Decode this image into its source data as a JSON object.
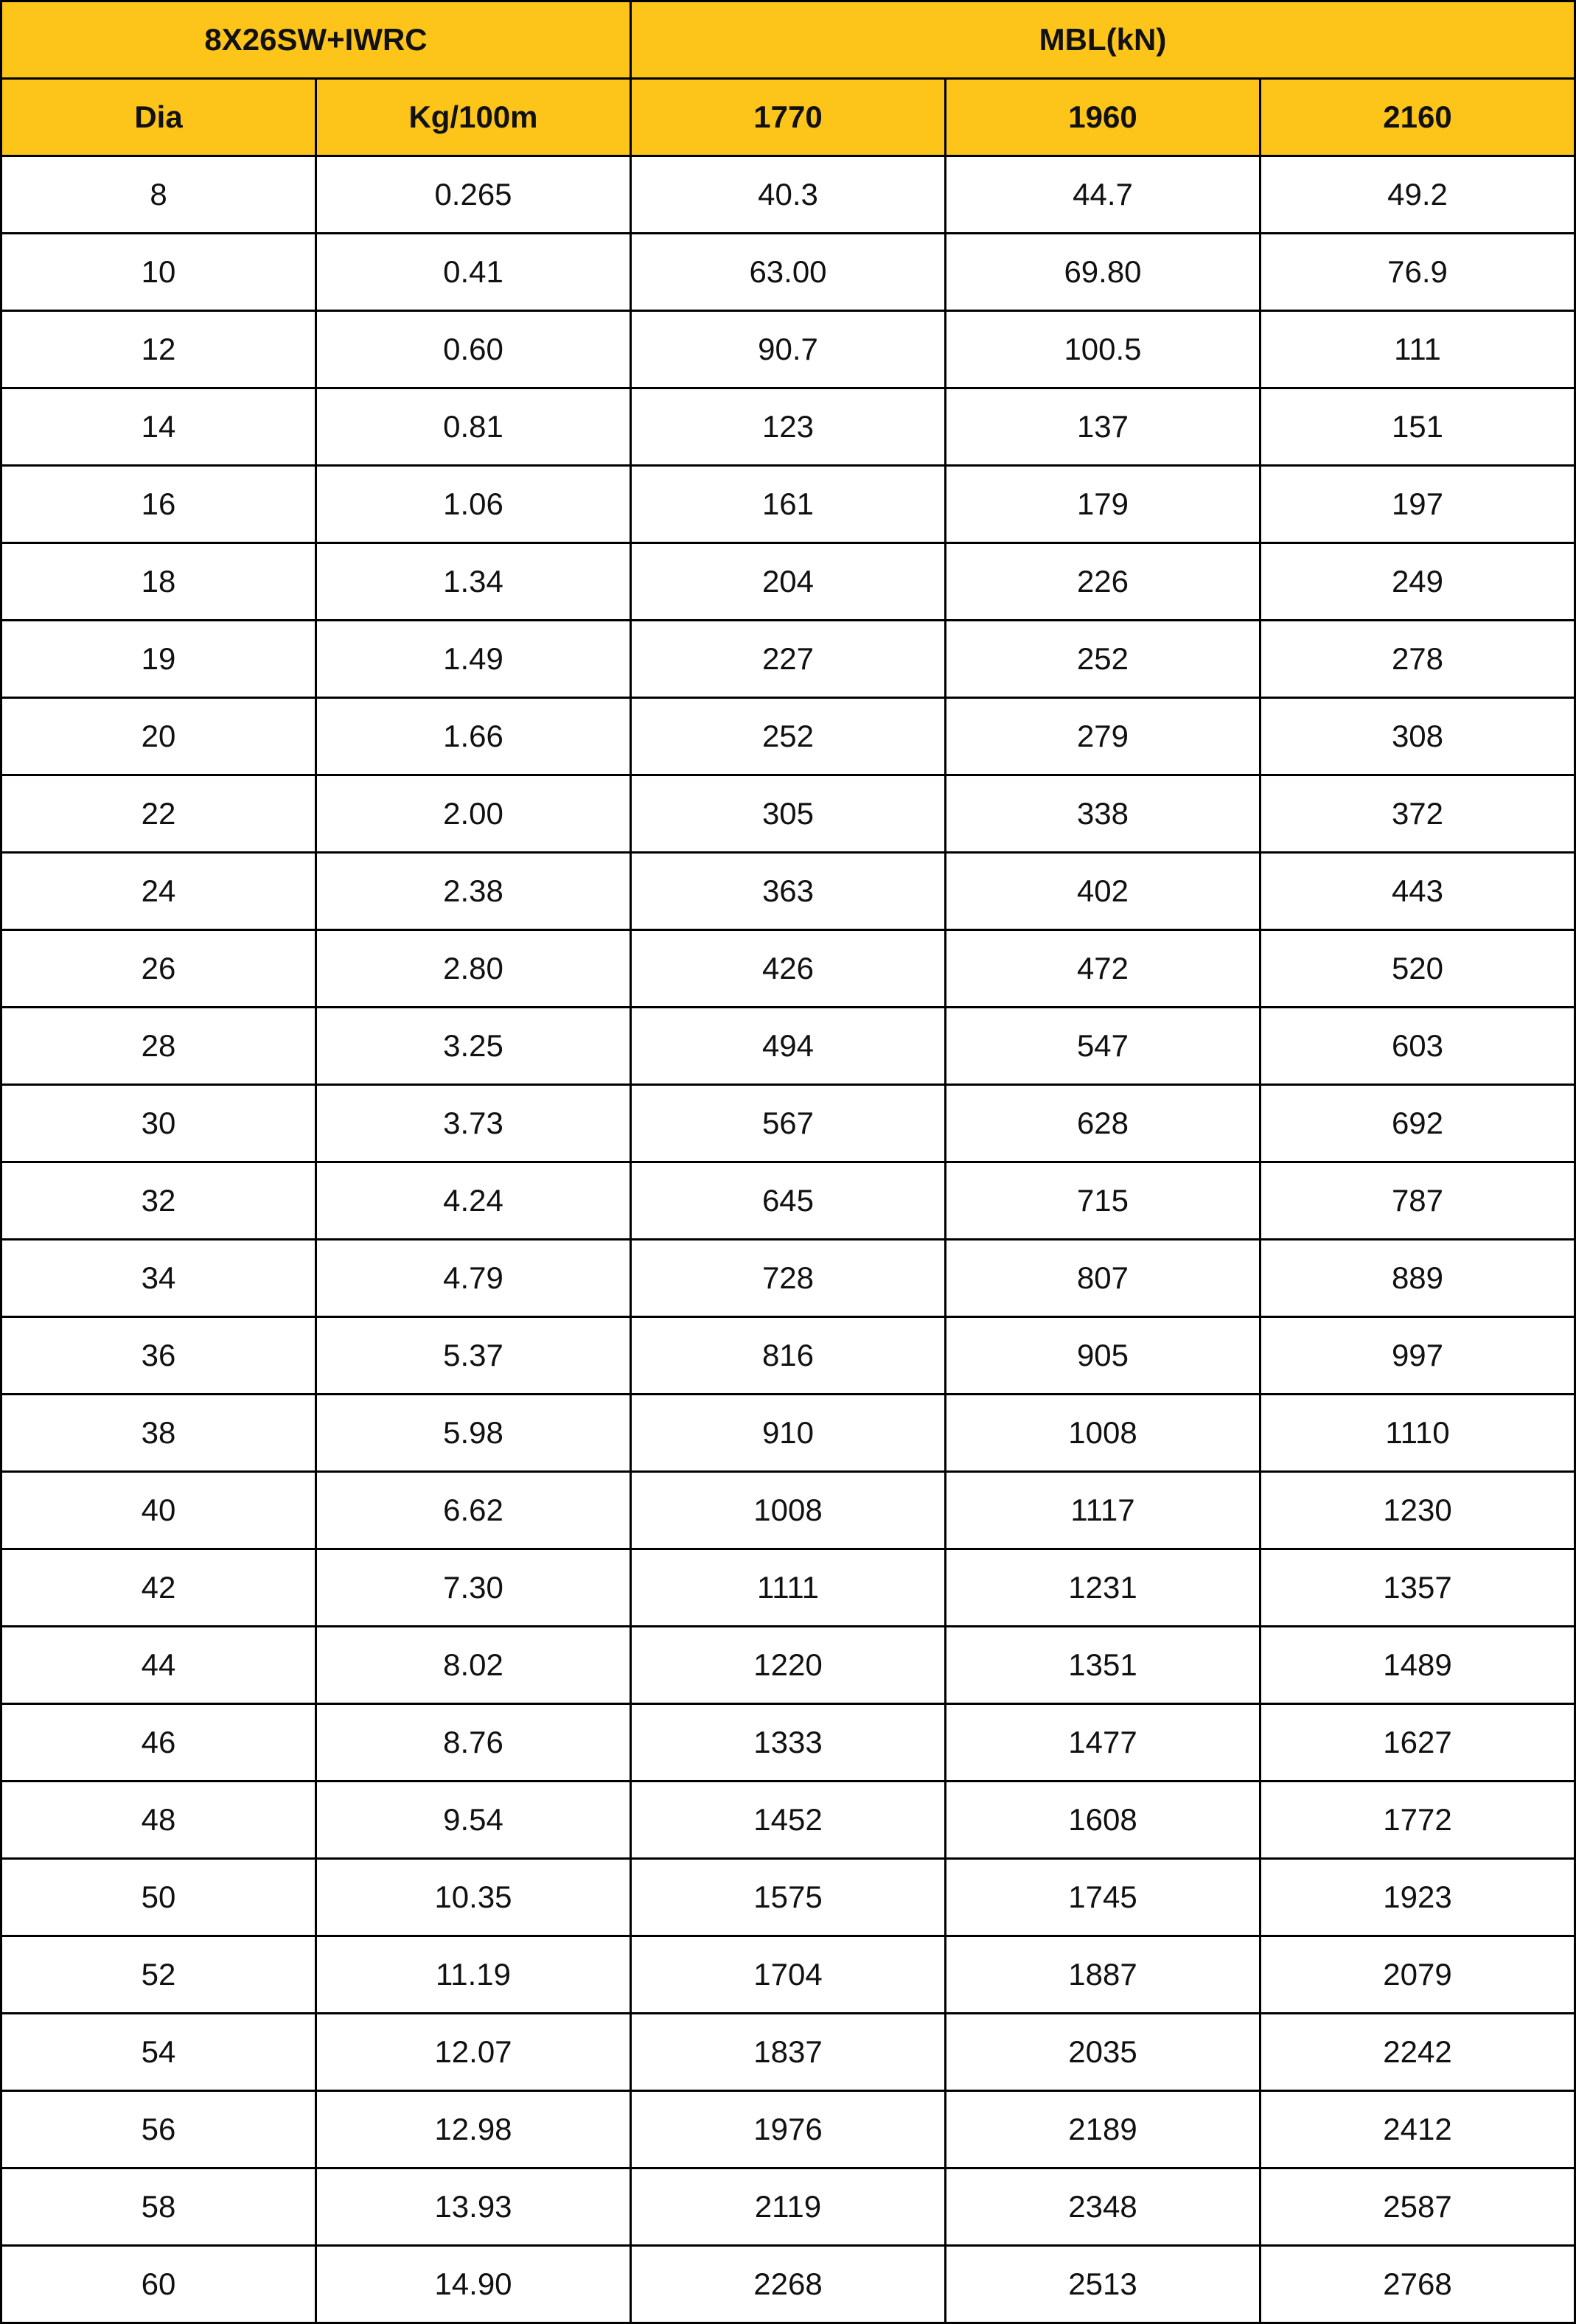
{
  "table": {
    "group_headers": [
      "8X26SW+IWRC",
      "MBL(kN)"
    ],
    "columns": [
      "Dia",
      "Kg/100m",
      "1770",
      "1960",
      "2160"
    ],
    "rows": [
      [
        "8",
        "0.265",
        "40.3",
        "44.7",
        "49.2"
      ],
      [
        "10",
        "0.41",
        "63.00",
        "69.80",
        "76.9"
      ],
      [
        "12",
        "0.60",
        "90.7",
        "100.5",
        "111"
      ],
      [
        "14",
        "0.81",
        "123",
        "137",
        "151"
      ],
      [
        "16",
        "1.06",
        "161",
        "179",
        "197"
      ],
      [
        "18",
        "1.34",
        "204",
        "226",
        "249"
      ],
      [
        "19",
        "1.49",
        "227",
        "252",
        "278"
      ],
      [
        "20",
        "1.66",
        "252",
        "279",
        "308"
      ],
      [
        "22",
        "2.00",
        "305",
        "338",
        "372"
      ],
      [
        "24",
        "2.38",
        "363",
        "402",
        "443"
      ],
      [
        "26",
        "2.80",
        "426",
        "472",
        "520"
      ],
      [
        "28",
        "3.25",
        "494",
        "547",
        "603"
      ],
      [
        "30",
        "3.73",
        "567",
        "628",
        "692"
      ],
      [
        "32",
        "4.24",
        "645",
        "715",
        "787"
      ],
      [
        "34",
        "4.79",
        "728",
        "807",
        "889"
      ],
      [
        "36",
        "5.37",
        "816",
        "905",
        "997"
      ],
      [
        "38",
        "5.98",
        "910",
        "1008",
        "1110"
      ],
      [
        "40",
        "6.62",
        "1008",
        "1117",
        "1230"
      ],
      [
        "42",
        "7.30",
        "1111",
        "1231",
        "1357"
      ],
      [
        "44",
        "8.02",
        "1220",
        "1351",
        "1489"
      ],
      [
        "46",
        "8.76",
        "1333",
        "1477",
        "1627"
      ],
      [
        "48",
        "9.54",
        "1452",
        "1608",
        "1772"
      ],
      [
        "50",
        "10.35",
        "1575",
        "1745",
        "1923"
      ],
      [
        "52",
        "11.19",
        "1704",
        "1887",
        "2079"
      ],
      [
        "54",
        "12.07",
        "1837",
        "2035",
        "2242"
      ],
      [
        "56",
        "12.98",
        "1976",
        "2189",
        "2412"
      ],
      [
        "58",
        "13.93",
        "2119",
        "2348",
        "2587"
      ],
      [
        "60",
        "14.90",
        "2268",
        "2513",
        "2768"
      ]
    ]
  }
}
